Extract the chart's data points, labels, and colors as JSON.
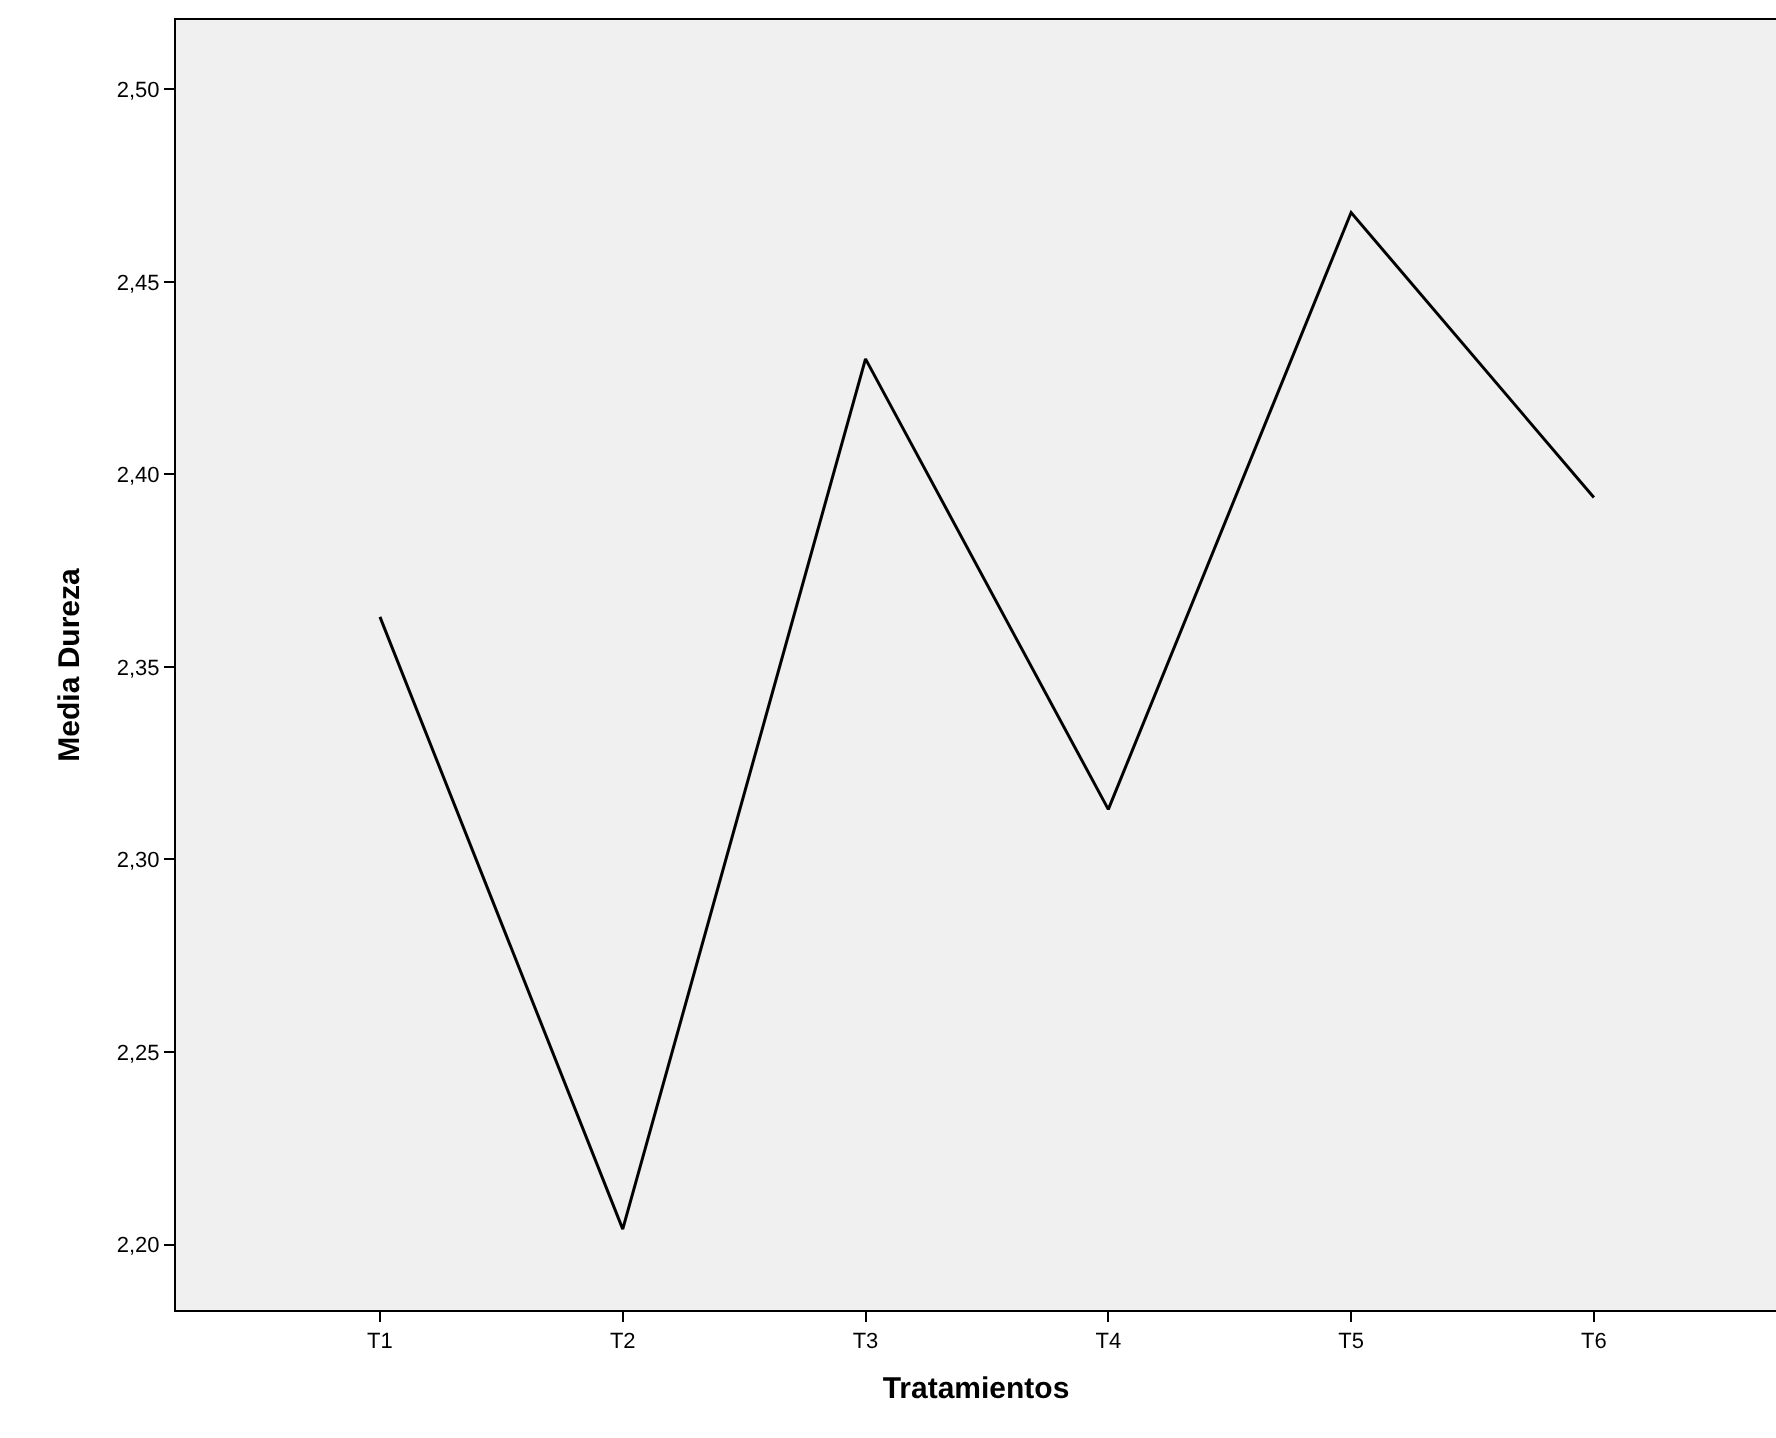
{
  "chart_data": {
    "type": "line",
    "xlabel": "Tratamientos",
    "ylabel": "Media Dureza",
    "categories": [
      "T1",
      "T2",
      "T3",
      "T4",
      "T5",
      "T6"
    ],
    "series": [
      {
        "color": "#000000",
        "values": [
          2.363,
          2.204,
          2.43,
          2.313,
          2.468,
          2.394
        ]
      }
    ],
    "ylim": [
      2.183,
      2.518
    ],
    "yticks": [
      {
        "value": 2.2,
        "label": "2,20"
      },
      {
        "value": 2.25,
        "label": "2,25"
      },
      {
        "value": 2.3,
        "label": "2,30"
      },
      {
        "value": 2.35,
        "label": "2,35"
      },
      {
        "value": 2.4,
        "label": "2,40"
      },
      {
        "value": 2.45,
        "label": "2,45"
      },
      {
        "value": 2.5,
        "label": "2,50"
      }
    ],
    "grid": false,
    "legend": false,
    "marker": "none",
    "line_style": "solid"
  }
}
